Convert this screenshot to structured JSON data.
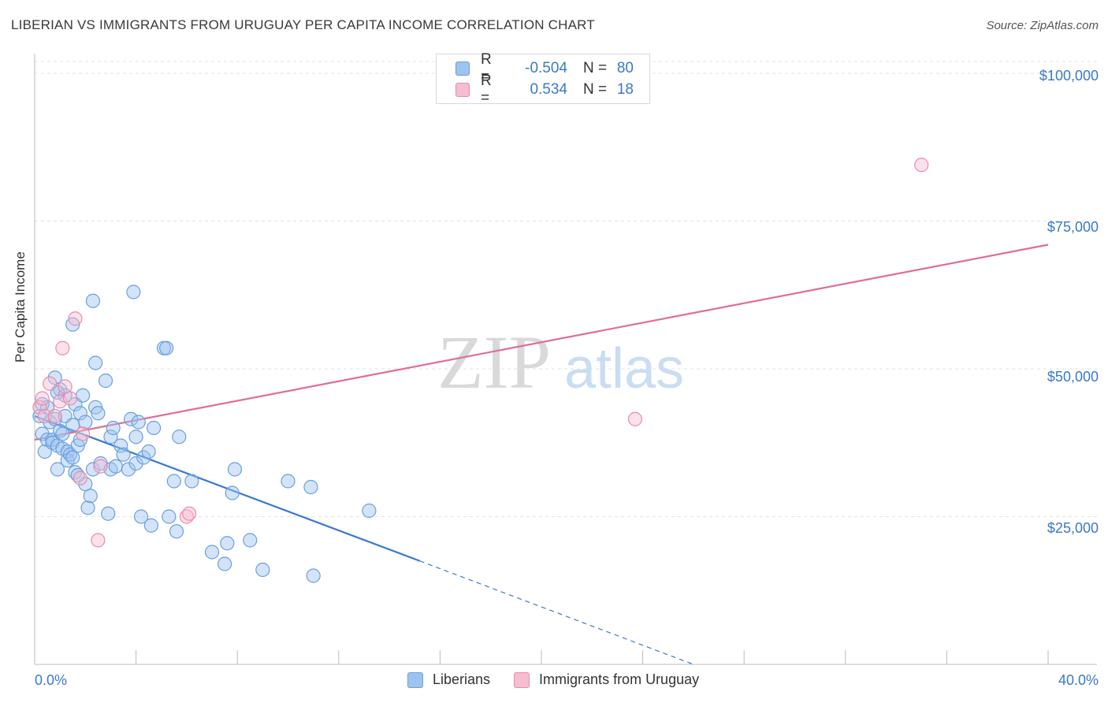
{
  "title": "LIBERIAN VS IMMIGRANTS FROM URUGUAY PER CAPITA INCOME CORRELATION CHART",
  "source": "Source: ZipAtlas.com",
  "watermark": {
    "zip": "ZIP",
    "atlas": "atlas"
  },
  "legend": {
    "rows": [
      {
        "r_label": "R =",
        "r_value": "-0.504",
        "n_label": "N =",
        "n_value": "80",
        "color": "#9dc3ef",
        "border": "#6a9fdc"
      },
      {
        "r_label": "R =",
        "r_value": "0.534",
        "n_label": "N =",
        "n_value": "18",
        "color": "#f6bcd0",
        "border": "#e98aab"
      }
    ]
  },
  "bottom_legend": {
    "items": [
      "Liberians",
      "Immigrants from Uruguay"
    ]
  },
  "chart_data": {
    "type": "scatter",
    "title": "LIBERIAN VS IMMIGRANTS FROM URUGUAY PER CAPITA INCOME CORRELATION CHART",
    "xlabel": "",
    "ylabel": "Per Capita Income",
    "xlim": [
      0,
      40
    ],
    "ylim": [
      0,
      102000
    ],
    "x_tick_labels": [
      "0.0%",
      "40.0%"
    ],
    "y_ticks": [
      25000,
      50000,
      75000,
      100000
    ],
    "y_tick_labels": [
      "$25,000",
      "$50,000",
      "$75,000",
      "$100,000"
    ],
    "grid": true,
    "series": [
      {
        "name": "Liberians",
        "color": "#6a9fdc",
        "fill": "rgba(157,195,239,0.45)",
        "trend": {
          "x": [
            0,
            15.2
          ],
          "y": [
            42000,
            17500
          ],
          "dashed_to": [
            26.0,
            0
          ]
        },
        "points": [
          [
            0.2,
            42000
          ],
          [
            0.3,
            39000
          ],
          [
            0.3,
            44000
          ],
          [
            0.4,
            36000
          ],
          [
            0.5,
            43500
          ],
          [
            0.5,
            38000
          ],
          [
            0.6,
            41000
          ],
          [
            0.7,
            38000
          ],
          [
            0.7,
            37500
          ],
          [
            0.8,
            41500
          ],
          [
            0.8,
            48500
          ],
          [
            0.9,
            37000
          ],
          [
            0.9,
            33000
          ],
          [
            1.0,
            39500
          ],
          [
            1.0,
            46500
          ],
          [
            1.1,
            36500
          ],
          [
            1.1,
            39000
          ],
          [
            1.2,
            42000
          ],
          [
            1.2,
            45500
          ],
          [
            1.3,
            36000
          ],
          [
            1.3,
            34500
          ],
          [
            1.4,
            35500
          ],
          [
            1.5,
            35000
          ],
          [
            1.5,
            40500
          ],
          [
            1.5,
            57500
          ],
          [
            1.6,
            32500
          ],
          [
            1.6,
            44000
          ],
          [
            1.7,
            37000
          ],
          [
            1.8,
            42500
          ],
          [
            1.8,
            38000
          ],
          [
            1.9,
            45500
          ],
          [
            2.0,
            30500
          ],
          [
            2.0,
            41000
          ],
          [
            2.1,
            26500
          ],
          [
            2.2,
            28500
          ],
          [
            2.3,
            33000
          ],
          [
            2.3,
            61500
          ],
          [
            2.4,
            51000
          ],
          [
            2.4,
            43500
          ],
          [
            2.5,
            42500
          ],
          [
            2.6,
            34000
          ],
          [
            2.8,
            48000
          ],
          [
            2.9,
            25500
          ],
          [
            3.0,
            33000
          ],
          [
            3.0,
            38500
          ],
          [
            3.1,
            40000
          ],
          [
            3.2,
            33500
          ],
          [
            3.4,
            37000
          ],
          [
            3.5,
            35500
          ],
          [
            3.7,
            33000
          ],
          [
            3.8,
            41500
          ],
          [
            3.9,
            63000
          ],
          [
            4.0,
            34000
          ],
          [
            4.0,
            38500
          ],
          [
            4.1,
            41000
          ],
          [
            4.2,
            25000
          ],
          [
            4.3,
            35000
          ],
          [
            4.5,
            36000
          ],
          [
            4.6,
            23500
          ],
          [
            4.7,
            40000
          ],
          [
            5.1,
            53500
          ],
          [
            5.2,
            53500
          ],
          [
            5.3,
            25000
          ],
          [
            5.5,
            31000
          ],
          [
            5.6,
            22500
          ],
          [
            5.7,
            38500
          ],
          [
            6.2,
            31000
          ],
          [
            7.0,
            19000
          ],
          [
            7.5,
            17000
          ],
          [
            7.6,
            20500
          ],
          [
            7.8,
            29000
          ],
          [
            7.9,
            33000
          ],
          [
            8.5,
            21000
          ],
          [
            9.0,
            16000
          ],
          [
            10.0,
            31000
          ],
          [
            10.9,
            30000
          ],
          [
            11.0,
            15000
          ],
          [
            13.2,
            26000
          ],
          [
            0.9,
            46000
          ],
          [
            1.7,
            32000
          ]
        ]
      },
      {
        "name": "Immigrants from Uruguay",
        "color": "#e98aab",
        "fill": "rgba(246,188,208,0.45)",
        "trend": {
          "x": [
            0,
            40
          ],
          "y": [
            38000,
            71000
          ]
        },
        "points": [
          [
            0.2,
            43500
          ],
          [
            0.3,
            45000
          ],
          [
            0.4,
            42000
          ],
          [
            0.6,
            47500
          ],
          [
            0.8,
            42000
          ],
          [
            1.0,
            44500
          ],
          [
            1.1,
            53500
          ],
          [
            1.2,
            47000
          ],
          [
            1.4,
            45000
          ],
          [
            1.6,
            58500
          ],
          [
            1.8,
            31500
          ],
          [
            1.9,
            39000
          ],
          [
            2.5,
            21000
          ],
          [
            2.6,
            33500
          ],
          [
            6.0,
            25000
          ],
          [
            6.1,
            25500
          ],
          [
            23.7,
            41500
          ],
          [
            35.0,
            84500
          ]
        ]
      }
    ]
  }
}
